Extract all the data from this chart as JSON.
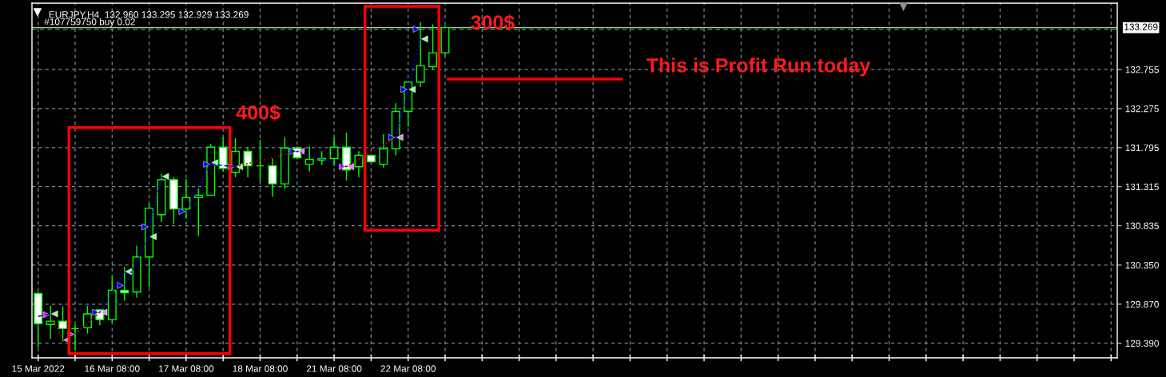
{
  "chart_data": {
    "type": "candlestick",
    "title": "EURJPY,H4  132.960 133.295 132.929 133.269",
    "categories": [
      "15 Mar 2022",
      null,
      null,
      null,
      null,
      null,
      "16 Mar 08:00",
      null,
      null,
      null,
      null,
      null,
      "17 Mar 08:00",
      null,
      null,
      null,
      null,
      null,
      "18 Mar 08:00",
      null,
      null,
      null,
      null,
      null,
      "21 Mar 08:00",
      null,
      null,
      null,
      null,
      null,
      "22 Mar 08:00",
      null,
      null,
      null,
      null,
      null,
      null,
      null,
      null,
      null,
      null,
      null,
      null,
      null,
      null,
      null,
      null,
      null,
      null,
      null,
      null,
      null,
      null,
      null,
      null,
      null,
      null,
      null,
      null,
      null,
      null,
      null,
      null,
      null,
      null,
      null,
      null,
      null,
      null,
      null,
      null,
      null,
      null,
      null,
      null,
      null,
      null,
      null,
      null,
      null,
      null,
      null,
      null,
      null,
      null,
      null,
      null,
      null
    ],
    "ohlc": [
      [
        130.0,
        130.02,
        129.34,
        129.63
      ],
      [
        129.62,
        129.85,
        129.44,
        129.66
      ],
      [
        129.66,
        129.84,
        129.41,
        129.57
      ],
      [
        129.57,
        129.62,
        129.31,
        129.57
      ],
      [
        129.58,
        129.85,
        129.51,
        129.75
      ],
      [
        129.8,
        129.81,
        129.61,
        129.68
      ],
      [
        129.68,
        130.21,
        129.64,
        130.04
      ],
      [
        130.04,
        130.33,
        129.91,
        130.01
      ],
      [
        130.02,
        130.59,
        129.95,
        130.45
      ],
      [
        130.45,
        131.1,
        130.08,
        131.05
      ],
      [
        130.97,
        131.47,
        130.88,
        131.4
      ],
      [
        131.4,
        131.43,
        130.86,
        131.04
      ],
      [
        131.04,
        131.41,
        130.92,
        131.18
      ],
      [
        131.18,
        131.29,
        130.71,
        131.21
      ],
      [
        131.21,
        131.84,
        131.2,
        131.8
      ],
      [
        131.8,
        131.92,
        131.5,
        131.54
      ],
      [
        131.49,
        131.91,
        131.43,
        131.75
      ],
      [
        131.75,
        131.8,
        131.43,
        131.57
      ],
      [
        131.57,
        131.89,
        131.37,
        131.57
      ],
      [
        131.57,
        131.66,
        131.19,
        131.35
      ],
      [
        131.35,
        131.92,
        131.29,
        131.79
      ],
      [
        131.79,
        131.81,
        131.65,
        131.67
      ],
      [
        131.59,
        131.81,
        131.5,
        131.65
      ],
      [
        131.64,
        131.75,
        131.58,
        131.66
      ],
      [
        131.66,
        131.92,
        131.57,
        131.8
      ],
      [
        131.8,
        131.98,
        131.39,
        131.52
      ],
      [
        131.56,
        131.75,
        131.43,
        131.7
      ],
      [
        131.7,
        131.71,
        131.62,
        131.62
      ],
      [
        131.59,
        131.96,
        131.55,
        131.78
      ],
      [
        131.78,
        132.34,
        131.7,
        132.24
      ],
      [
        132.24,
        132.6,
        132.05,
        132.6
      ],
      [
        132.6,
        133.34,
        132.54,
        132.8
      ],
      [
        132.79,
        133.31,
        132.75,
        132.96
      ],
      [
        132.96,
        133.295,
        132.929,
        133.269
      ],
      null,
      null,
      null,
      null,
      null,
      null,
      null,
      null,
      null,
      null,
      null,
      null,
      null,
      null,
      null,
      null,
      null,
      null,
      null,
      null,
      null,
      null,
      null,
      null,
      null,
      null,
      null,
      null,
      null,
      null,
      null,
      null,
      null,
      null,
      null,
      null,
      null,
      null,
      null,
      null,
      null,
      null,
      null,
      null,
      null,
      null,
      null,
      null,
      null,
      null,
      null,
      null,
      null,
      null
    ],
    "color": "#00ff00",
    "colors": [
      "#ffffff",
      "#000000",
      "#ffffff",
      "#00ff00",
      "#000000",
      "#ffffff",
      "#000000",
      "#ffffff",
      "#000000",
      "#000000",
      "#000000",
      "#ffffff",
      "#000000",
      "#000000",
      "#000000",
      "#ffffff",
      "#000000",
      "#ffffff",
      "#00ff00",
      "#ffffff",
      "#000000",
      "#ffffff",
      "#000000",
      "#000000",
      "#000000",
      "#ffffff",
      "#000000",
      "#ffffff",
      "#000000",
      "#000000",
      "#000000",
      "#000000",
      "#000000",
      "#000000",
      null,
      null,
      null,
      null,
      null,
      null,
      null,
      null,
      null,
      null,
      null,
      null,
      null,
      null,
      null,
      null,
      null,
      null,
      null,
      null,
      null,
      null,
      null,
      null,
      null,
      null,
      null,
      null,
      null,
      null,
      null,
      null,
      null,
      null,
      null,
      null,
      null,
      null,
      null,
      null,
      null,
      null,
      null,
      null,
      null,
      null,
      null,
      null,
      null,
      null,
      null,
      null,
      null,
      null
    ],
    "series": [
      {
        "type": "scatter",
        "marker": "triangle",
        "values": [
          null,
          129.74,
          null,
          129.5,
          null,
          129.77,
          null,
          130.1,
          null,
          130.82,
          null,
          null,
          131.01,
          null,
          131.59,
          null,
          131.56,
          null,
          null,
          null,
          null,
          131.75,
          null,
          null,
          null,
          131.56,
          null,
          null,
          null,
          131.92,
          132.51,
          133.25,
          null,
          null,
          null,
          null,
          null,
          null,
          null,
          null,
          null,
          null,
          null,
          null,
          null,
          null,
          null,
          null,
          null,
          null,
          null,
          null,
          null,
          null,
          null,
          null,
          null,
          null,
          null,
          null,
          null,
          null,
          null,
          null,
          null,
          null,
          null,
          null,
          null,
          null,
          null,
          null,
          null,
          null,
          null,
          null,
          null,
          null,
          null,
          null,
          null,
          null,
          null,
          null,
          null,
          null,
          null,
          null
        ],
        "colors": [
          null,
          "#ff00ff",
          null,
          "#ff00ff",
          null,
          "#0000ff",
          null,
          "#0000ff",
          null,
          "#0000ff",
          null,
          null,
          "#0000ff",
          null,
          "#0000ff",
          null,
          "#ff00ff",
          null,
          null,
          null,
          null,
          "#0000ff",
          null,
          null,
          null,
          "#ff00ff",
          null,
          null,
          null,
          "#0000ff",
          "#0000ff",
          "#0000ff",
          null,
          null,
          null,
          null,
          null,
          null,
          null,
          null,
          null,
          null,
          null,
          null,
          null,
          null,
          null,
          null,
          null,
          null,
          null,
          null,
          null,
          null,
          null,
          null,
          null,
          null,
          null,
          null,
          null,
          null,
          null,
          null,
          null,
          null,
          null,
          null,
          null,
          null,
          null,
          null,
          null,
          null,
          null,
          null,
          null,
          null,
          null,
          null,
          null,
          null,
          null,
          null,
          null,
          null,
          null,
          null
        ]
      },
      {
        "type": "scatter",
        "marker": "triangle",
        "values": [
          null,
          129.75,
          129.43,
          null,
          null,
          129.77,
          null,
          130.27,
          null,
          130.7,
          131.44,
          null,
          null,
          null,
          131.61,
          null,
          131.56,
          null,
          null,
          null,
          null,
          131.75,
          null,
          null,
          null,
          131.56,
          null,
          null,
          null,
          131.92,
          132.51,
          133.13,
          null,
          null,
          null,
          null,
          null,
          null,
          null,
          null,
          null,
          null,
          null,
          null,
          null,
          null,
          null,
          null,
          null,
          null,
          null,
          null,
          null,
          null,
          null,
          null,
          null,
          null,
          null,
          null,
          null,
          null,
          null,
          null,
          null,
          null,
          null,
          null,
          null,
          null,
          null,
          null,
          null,
          null,
          null,
          null,
          null,
          null,
          null,
          null,
          null,
          null,
          null,
          null,
          null,
          null,
          null,
          null
        ],
        "colors": [
          null,
          "#98fb98",
          "#ee82ee",
          null,
          null,
          "#ee82ee",
          null,
          "#98fb98",
          null,
          "#98fb98",
          "#98fb98",
          null,
          null,
          null,
          "#98fb98",
          null,
          "#98fb98",
          null,
          null,
          null,
          null,
          "#ee82ee",
          null,
          null,
          null,
          "#ee82ee",
          null,
          null,
          null,
          "#ee82ee",
          "#98fb98",
          "#98fb98",
          null,
          null,
          null,
          null,
          null,
          null,
          null,
          null,
          null,
          null,
          null,
          null,
          null,
          null,
          null,
          null,
          null,
          null,
          null,
          null,
          null,
          null,
          null,
          null,
          null,
          null,
          null,
          null,
          null,
          null,
          null,
          null,
          null,
          null,
          null,
          null,
          null,
          null,
          null,
          null,
          null,
          null,
          null,
          null,
          null,
          null,
          null,
          null,
          null,
          null,
          null,
          null,
          null,
          null,
          null,
          null
        ]
      },
      {
        "type": "line",
        "color": "#0000ff",
        "line_style": "dashed",
        "values": [
          129.72,
          129.75,
          null,
          null,
          null,
          null,
          null,
          null,
          null,
          null,
          null,
          null,
          null,
          null,
          null,
          null,
          null,
          null,
          null,
          null,
          null,
          null,
          null,
          null,
          null,
          null,
          null,
          null,
          null,
          null,
          null,
          null,
          null,
          null,
          null,
          null,
          null,
          null,
          null,
          null,
          null,
          null,
          null,
          null,
          null,
          null,
          null,
          null,
          null,
          null,
          null,
          null,
          null,
          null,
          null,
          null,
          null,
          null,
          null,
          null,
          null,
          null,
          null,
          null,
          null,
          null,
          null,
          null,
          null,
          null,
          null,
          null,
          null,
          null,
          null,
          null,
          null,
          null,
          null,
          null,
          null,
          null,
          null,
          null,
          null,
          null,
          null,
          null
        ]
      },
      {
        "type": "line",
        "color": "#b00000",
        "values": [
          null,
          129.74,
          129.43,
          null,
          null,
          null,
          null,
          null,
          null,
          null,
          null,
          null,
          null,
          null,
          null,
          null,
          null,
          null,
          null,
          null,
          null,
          null,
          null,
          null,
          null,
          null,
          null,
          null,
          null,
          null,
          null,
          null,
          null,
          null,
          null,
          null,
          null,
          null,
          null,
          null,
          null,
          null,
          null,
          null,
          null,
          null,
          null,
          null,
          null,
          null,
          null,
          null,
          null,
          null,
          null,
          null,
          null,
          null,
          null,
          null,
          null,
          null,
          null,
          null,
          null,
          null,
          null,
          null,
          null,
          null,
          null,
          null,
          null,
          null,
          null,
          null,
          null,
          null,
          null,
          null,
          null,
          null,
          null,
          null,
          null,
          null,
          null,
          null
        ]
      },
      {
        "type": "line",
        "color": "#b00000",
        "values": [
          null,
          null,
          null,
          129.5,
          null,
          129.77,
          null,
          null,
          null,
          null,
          null,
          null,
          null,
          null,
          null,
          null,
          null,
          null,
          null,
          null,
          null,
          null,
          null,
          null,
          null,
          null,
          null,
          null,
          null,
          null,
          null,
          null,
          null,
          null,
          null,
          null,
          null,
          null,
          null,
          null,
          null,
          null,
          null,
          null,
          null,
          null,
          null,
          null,
          null,
          null,
          null,
          null,
          null,
          null,
          null,
          null,
          null,
          null,
          null,
          null,
          null,
          null,
          null,
          null,
          null,
          null,
          null,
          null,
          null,
          null,
          null,
          null,
          null,
          null,
          null,
          null,
          null,
          null,
          null,
          null,
          null,
          null,
          null,
          null,
          null,
          null,
          null,
          null
        ]
      },
      {
        "type": "line",
        "color": "#0000ff",
        "values": [
          null,
          null,
          null,
          null,
          null,
          129.77,
          null,
          130.27,
          null,
          null,
          null,
          null,
          null,
          null,
          null,
          null,
          null,
          null,
          null,
          null,
          null,
          null,
          null,
          null,
          null,
          null,
          null,
          null,
          null,
          null,
          null,
          null,
          null,
          null,
          null,
          null,
          null,
          null,
          null,
          null,
          null,
          null,
          null,
          null,
          null,
          null,
          null,
          null,
          null,
          null,
          null,
          null,
          null,
          null,
          null,
          null,
          null,
          null,
          null,
          null,
          null,
          null,
          null,
          null,
          null,
          null,
          null,
          null,
          null,
          null,
          null,
          null,
          null,
          null,
          null,
          null,
          null,
          null,
          null,
          null,
          null,
          null,
          null,
          null,
          null,
          null,
          null,
          null
        ]
      },
      {
        "type": "line",
        "color": "#0000ff",
        "values": [
          null,
          null,
          null,
          null,
          null,
          null,
          null,
          130.1,
          null,
          130.7,
          null,
          null,
          null,
          null,
          null,
          null,
          null,
          null,
          null,
          null,
          null,
          null,
          null,
          null,
          null,
          null,
          null,
          null,
          null,
          null,
          null,
          null,
          null,
          null,
          null,
          null,
          null,
          null,
          null,
          null,
          null,
          null,
          null,
          null,
          null,
          null,
          null,
          null,
          null,
          null,
          null,
          null,
          null,
          null,
          null,
          null,
          null,
          null,
          null,
          null,
          null,
          null,
          null,
          null,
          null,
          null,
          null,
          null,
          null,
          null,
          null,
          null,
          null,
          null,
          null,
          null,
          null,
          null,
          null,
          null,
          null,
          null,
          null,
          null,
          null,
          null,
          null,
          null
        ]
      },
      {
        "type": "line",
        "color": "#0000ff",
        "values": [
          null,
          null,
          null,
          null,
          null,
          null,
          null,
          null,
          null,
          130.82,
          131.44,
          null,
          null,
          null,
          null,
          null,
          null,
          null,
          null,
          null,
          null,
          null,
          null,
          null,
          null,
          null,
          null,
          null,
          null,
          null,
          null,
          null,
          null,
          null,
          null,
          null,
          null,
          null,
          null,
          null,
          null,
          null,
          null,
          null,
          null,
          null,
          null,
          null,
          null,
          null,
          null,
          null,
          null,
          null,
          null,
          null,
          null,
          null,
          null,
          null,
          null,
          null,
          null,
          null,
          null,
          null,
          null,
          null,
          null,
          null,
          null,
          null,
          null,
          null,
          null,
          null,
          null,
          null,
          null,
          null,
          null,
          null,
          null,
          null,
          null,
          null,
          null,
          null
        ]
      },
      {
        "type": "line",
        "color": "#0000ff",
        "values": [
          null,
          null,
          null,
          null,
          null,
          null,
          null,
          null,
          null,
          null,
          null,
          null,
          131.01,
          null,
          131.61,
          null,
          null,
          null,
          null,
          null,
          null,
          null,
          null,
          null,
          null,
          null,
          null,
          null,
          null,
          null,
          null,
          null,
          null,
          null,
          null,
          null,
          null,
          null,
          null,
          null,
          null,
          null,
          null,
          null,
          null,
          null,
          null,
          null,
          null,
          null,
          null,
          null,
          null,
          null,
          null,
          null,
          null,
          null,
          null,
          null,
          null,
          null,
          null,
          null,
          null,
          null,
          null,
          null,
          null,
          null,
          null,
          null,
          null,
          null,
          null,
          null,
          null,
          null,
          null,
          null,
          null,
          null,
          null,
          null,
          null,
          null,
          null,
          null
        ]
      },
      {
        "type": "line",
        "color": "#0000ff",
        "line_style": "dashed",
        "values": [
          null,
          null,
          null,
          null,
          null,
          null,
          null,
          null,
          null,
          null,
          null,
          null,
          null,
          null,
          131.59,
          null,
          131.56,
          null,
          null,
          null,
          null,
          null,
          null,
          null,
          null,
          null,
          null,
          null,
          null,
          null,
          null,
          null,
          null,
          null,
          null,
          null,
          null,
          null,
          null,
          null,
          null,
          null,
          null,
          null,
          null,
          null,
          null,
          null,
          null,
          null,
          null,
          null,
          null,
          null,
          null,
          null,
          null,
          null,
          null,
          null,
          null,
          null,
          null,
          null,
          null,
          null,
          null,
          null,
          null,
          null,
          null,
          null,
          null,
          null,
          null,
          null,
          null,
          null,
          null,
          null,
          null,
          null,
          null,
          null,
          null,
          null,
          null,
          null
        ]
      },
      {
        "type": "line",
        "color": "#b00000",
        "values": [
          null,
          null,
          null,
          null,
          null,
          null,
          null,
          null,
          null,
          null,
          null,
          null,
          null,
          null,
          null,
          null,
          131.56,
          null,
          null,
          null,
          null,
          131.75,
          null,
          null,
          null,
          null,
          null,
          null,
          null,
          null,
          null,
          null,
          null,
          null,
          null,
          null,
          null,
          null,
          null,
          null,
          null,
          null,
          null,
          null,
          null,
          null,
          null,
          null,
          null,
          null,
          null,
          null,
          null,
          null,
          null,
          null,
          null,
          null,
          null,
          null,
          null,
          null,
          null,
          null,
          null,
          null,
          null,
          null,
          null,
          null,
          null,
          null,
          null,
          null,
          null,
          null,
          null,
          null,
          null,
          null,
          null,
          null,
          null,
          null,
          null,
          null,
          null,
          null
        ]
      },
      {
        "type": "line",
        "color": "#0000ff",
        "values": [
          null,
          null,
          null,
          null,
          null,
          null,
          null,
          null,
          null,
          null,
          null,
          null,
          null,
          null,
          null,
          null,
          null,
          null,
          null,
          null,
          null,
          131.75,
          null,
          null,
          null,
          131.56,
          null,
          null,
          null,
          null,
          null,
          null,
          null,
          null,
          null,
          null,
          null,
          null,
          null,
          null,
          null,
          null,
          null,
          null,
          null,
          null,
          null,
          null,
          null,
          null,
          null,
          null,
          null,
          null,
          null,
          null,
          null,
          null,
          null,
          null,
          null,
          null,
          null,
          null,
          null,
          null,
          null,
          null,
          null,
          null,
          null,
          null,
          null,
          null,
          null,
          null,
          null,
          null,
          null,
          null,
          null,
          null,
          null,
          null,
          null,
          null,
          null,
          null
        ]
      },
      {
        "type": "line",
        "color": "#b00000",
        "values": [
          null,
          null,
          null,
          null,
          null,
          null,
          null,
          null,
          null,
          null,
          null,
          null,
          null,
          null,
          null,
          null,
          null,
          null,
          null,
          null,
          null,
          null,
          null,
          null,
          null,
          131.56,
          null,
          null,
          null,
          131.92,
          null,
          null,
          null,
          null,
          null,
          null,
          null,
          null,
          null,
          null,
          null,
          null,
          null,
          null,
          null,
          null,
          null,
          null,
          null,
          null,
          null,
          null,
          null,
          null,
          null,
          null,
          null,
          null,
          null,
          null,
          null,
          null,
          null,
          null,
          null,
          null,
          null,
          null,
          null,
          null,
          null,
          null,
          null,
          null,
          null,
          null,
          null,
          null,
          null,
          null,
          null,
          null,
          null,
          null,
          null,
          null,
          null,
          null
        ]
      },
      {
        "type": "line",
        "color": "#0000ff",
        "values": [
          null,
          null,
          null,
          null,
          null,
          null,
          null,
          null,
          null,
          null,
          null,
          null,
          null,
          null,
          null,
          null,
          null,
          null,
          null,
          null,
          null,
          null,
          null,
          null,
          null,
          null,
          null,
          null,
          null,
          131.92,
          132.51,
          133.13,
          null,
          null,
          null,
          null,
          null,
          null,
          null,
          null,
          null,
          null,
          null,
          null,
          null,
          null,
          null,
          null,
          null,
          null,
          null,
          null,
          null,
          null,
          null,
          null,
          null,
          null,
          null,
          null,
          null,
          null,
          null,
          null,
          null,
          null,
          null,
          null,
          null,
          null,
          null,
          null,
          null,
          null,
          null,
          null,
          null,
          null,
          null,
          null,
          null,
          null,
          null,
          null,
          null,
          null,
          null,
          null
        ]
      }
    ],
    "line_style": "dotted",
    "ref_lines": [
      {
        "axis": "y",
        "value": 133.25,
        "label": "#107759750 buy 0.02",
        "color": "#00c800",
        "line_style": "dashed"
      },
      {
        "axis": "y",
        "value": 133.269,
        "label": "133.269",
        "color": "#c0c0c0",
        "line_style": "solid"
      }
    ],
    "annotations": [
      "400$",
      "300$",
      "This is Profit Run today"
    ],
    "ylim": [
      129.21,
      133.57
    ],
    "yticks": [
      {
        "value": 129.39,
        "label": "129.390"
      },
      {
        "value": 129.87,
        "label": "129.870"
      },
      {
        "value": 130.35,
        "label": "130.350"
      },
      130.835,
      131.315,
      131.795,
      132.275,
      132.755
    ],
    "grid": true
  }
}
